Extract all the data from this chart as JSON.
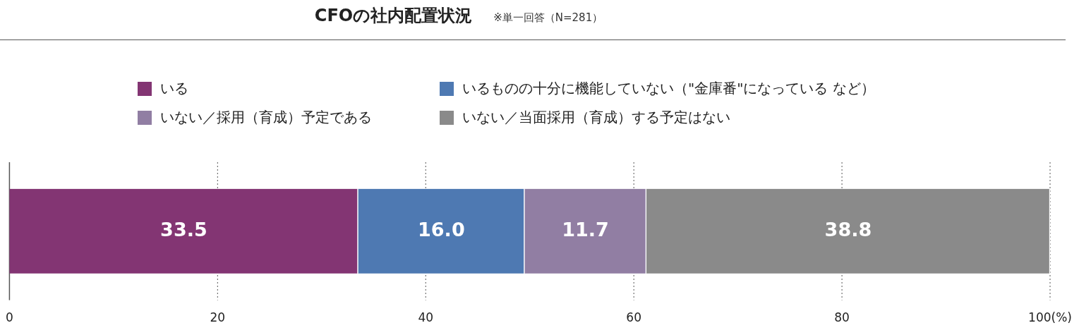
{
  "chart_data": {
    "type": "bar",
    "orientation": "horizontal",
    "stacked": true,
    "title": "CFOの社内配置状況",
    "subtitle": "※単一回答（N=281）",
    "categories": [
      null
    ],
    "series": [
      {
        "name": "いる",
        "color": "#833573",
        "values": [
          33.5
        ],
        "value_labels": [
          "33.5"
        ]
      },
      {
        "name": "いるものの十分に機能していない（\"金庫番\"になっている など）",
        "color": "#4e79b2",
        "values": [
          16.0
        ],
        "value_labels": [
          "16.0"
        ]
      },
      {
        "name": "いない／採用（育成）予定である",
        "color": "#917ea3",
        "values": [
          11.7
        ],
        "value_labels": [
          "11.7"
        ]
      },
      {
        "name": "いない／当面採用（育成）する予定はない",
        "color": "#8a8a8a",
        "values": [
          38.8
        ],
        "value_labels": [
          "38.8"
        ]
      }
    ],
    "xlim": [
      0,
      100
    ],
    "xticks": [
      0,
      20,
      40,
      60,
      80,
      {
        "value": 100,
        "label": "100(%)"
      }
    ],
    "grid": "x",
    "legend": "top"
  }
}
